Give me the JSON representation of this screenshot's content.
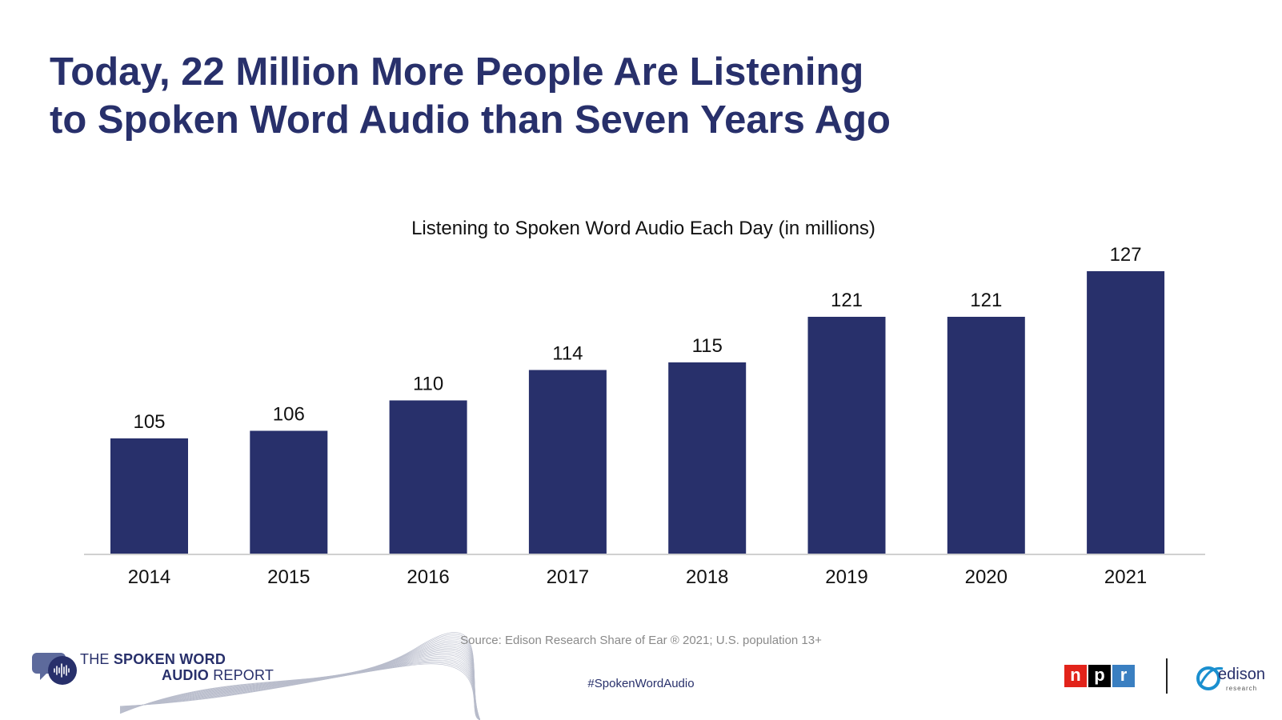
{
  "slide": {
    "title_line1": "Today, 22 Million More People Are Listening",
    "title_line2": "to Spoken Word Audio than Seven Years Ago",
    "source": "Source: Edison Research Share of Ear ® 2021; U.S. population 13+",
    "hashtag": "#SpokenWordAudio",
    "report_logo": {
      "line1_prefix": "THE ",
      "line1_bold": "SPOKEN WORD",
      "line2_bold": "AUDIO",
      "line2_suffix": " REPORT"
    },
    "npr_letters": [
      "n",
      "p",
      "r"
    ],
    "npr_colors": [
      "#e2231a",
      "#000000",
      "#3a7fc1"
    ],
    "edison_logo": {
      "name": "edison",
      "tagline": "research"
    }
  },
  "chart_data": {
    "type": "bar",
    "title": "Listening to Spoken Word Audio Each Day (in millions)",
    "categories": [
      "2014",
      "2015",
      "2016",
      "2017",
      "2018",
      "2019",
      "2020",
      "2021"
    ],
    "values": [
      105,
      106,
      110,
      114,
      115,
      121,
      121,
      127
    ],
    "data_labels": true,
    "xlabel": "",
    "ylabel": "",
    "y_axis_visible": false,
    "grid": false,
    "bar_color": "#28306b"
  }
}
